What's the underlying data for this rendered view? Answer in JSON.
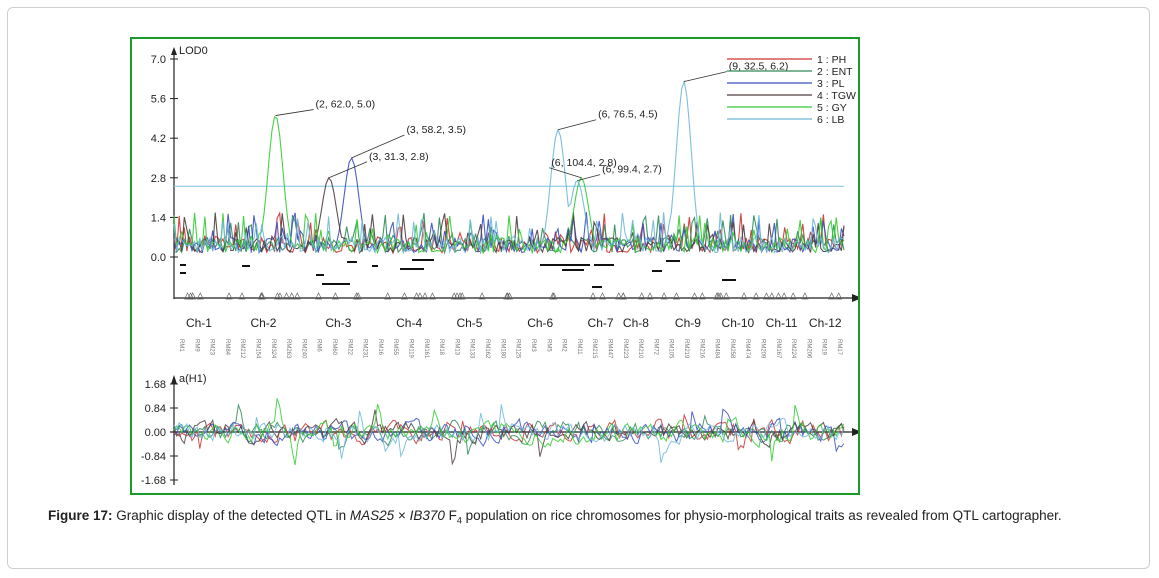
{
  "caption": {
    "label": "Figure 17:",
    "text_1": " Graphic display of the detected QTL in ",
    "cross_a": "MAS25",
    "times": " × ",
    "cross_b": "IB370",
    "gen": " F",
    "gen_sub": "4",
    "text_2": " population on rice chromosomes for physio-morphological traits as revealed from QTL cartographer."
  },
  "chart_data": [
    {
      "type": "line",
      "panel": "lod",
      "ylabel": "LOD0",
      "y_ticks": [
        7.0,
        5.6,
        4.2,
        2.8,
        1.4,
        0.0
      ],
      "y_tick_labels": [
        "7.0",
        "5.6",
        "4.2",
        "2.8",
        "1.4",
        "0.0"
      ],
      "ylim": [
        -1.4,
        7.0
      ],
      "threshold": 2.5,
      "chromosomes": [
        "Ch-1",
        "Ch-2",
        "Ch-3",
        "Ch-4",
        "Ch-5",
        "Ch-6",
        "Ch-7",
        "Ch-8",
        "Ch-9",
        "Ch-10",
        "Ch-11",
        "Ch-12"
      ],
      "chromosome_lengths": [
        60,
        95,
        85,
        85,
        60,
        110,
        35,
        50,
        75,
        45,
        60,
        45
      ],
      "colors": {
        "PH": "#cc3333",
        "ENT": "#2e8b57",
        "PL": "#3a4fbf",
        "TGW": "#4d3d3d",
        "GY": "#33cc33",
        "LB": "#6fb8d8"
      },
      "legend": {
        "position": "top-right",
        "entries": [
          {
            "code": "PH",
            "label": "1 : PH"
          },
          {
            "code": "ENT",
            "label": "2 : ENT"
          },
          {
            "code": "PL",
            "label": "3 : PL"
          },
          {
            "code": "TGW",
            "label": "4 : TGW"
          },
          {
            "code": "GY",
            "label": "5 : GY"
          },
          {
            "code": "LB",
            "label": "6 : LB"
          }
        ]
      },
      "peaks": [
        {
          "trait": "GY",
          "chr": 2,
          "pos": 62.0,
          "lod": 5.0,
          "label": "(2, 62.0, 5.0)"
        },
        {
          "trait": "PL",
          "chr": 3,
          "pos": 58.2,
          "lod": 3.5,
          "label": "(3, 58.2, 3.5)"
        },
        {
          "trait": "TGW",
          "chr": 3,
          "pos": 31.3,
          "lod": 2.8,
          "label": "(3, 31.3, 2.8)"
        },
        {
          "trait": "GY",
          "chr": 6,
          "pos": 104.4,
          "lod": 2.8,
          "label": "(6, 104.4, 2.8)"
        },
        {
          "trait": "LB",
          "chr": 6,
          "pos": 99.4,
          "lod": 2.7,
          "label": "(6, 99.4, 2.7)"
        },
        {
          "trait": "LB",
          "chr": 6,
          "pos": 76.5,
          "lod": 4.5,
          "label": "(6, 76.5, 4.5)"
        },
        {
          "trait": "LB",
          "chr": 9,
          "pos": 32.5,
          "lod": 6.2,
          "label": "(9, 32.5, 6.2)"
        }
      ],
      "marker_labels": [
        "RM1",
        "RM9",
        "RM23",
        "RM84",
        "RM212",
        "RM154",
        "RM324",
        "RM263",
        "RM240",
        "RM6",
        "RM60",
        "RM22",
        "RM231",
        "RM16",
        "RM55",
        "RM119",
        "RM161",
        "RM18",
        "RM13",
        "RM133",
        "RM162",
        "RM180",
        "RM125",
        "RM3",
        "RM5",
        "RM2",
        "RM11",
        "RM215",
        "RM447",
        "RM223",
        "RM210",
        "RM72",
        "RM105",
        "RM219",
        "RM216",
        "RM484",
        "RM258",
        "RM474",
        "RM209",
        "RM167",
        "RM224",
        "RM206",
        "RM19",
        "RM17"
      ]
    },
    {
      "type": "line",
      "panel": "additive",
      "ylabel": "a(H1)",
      "y_ticks": [
        1.68,
        0.84,
        0.0,
        -0.84,
        -1.68
      ],
      "y_tick_labels": [
        "1.68",
        "0.84",
        "0.00",
        "-0.84",
        "-1.68"
      ],
      "ylim": [
        -1.68,
        1.68
      ]
    }
  ]
}
